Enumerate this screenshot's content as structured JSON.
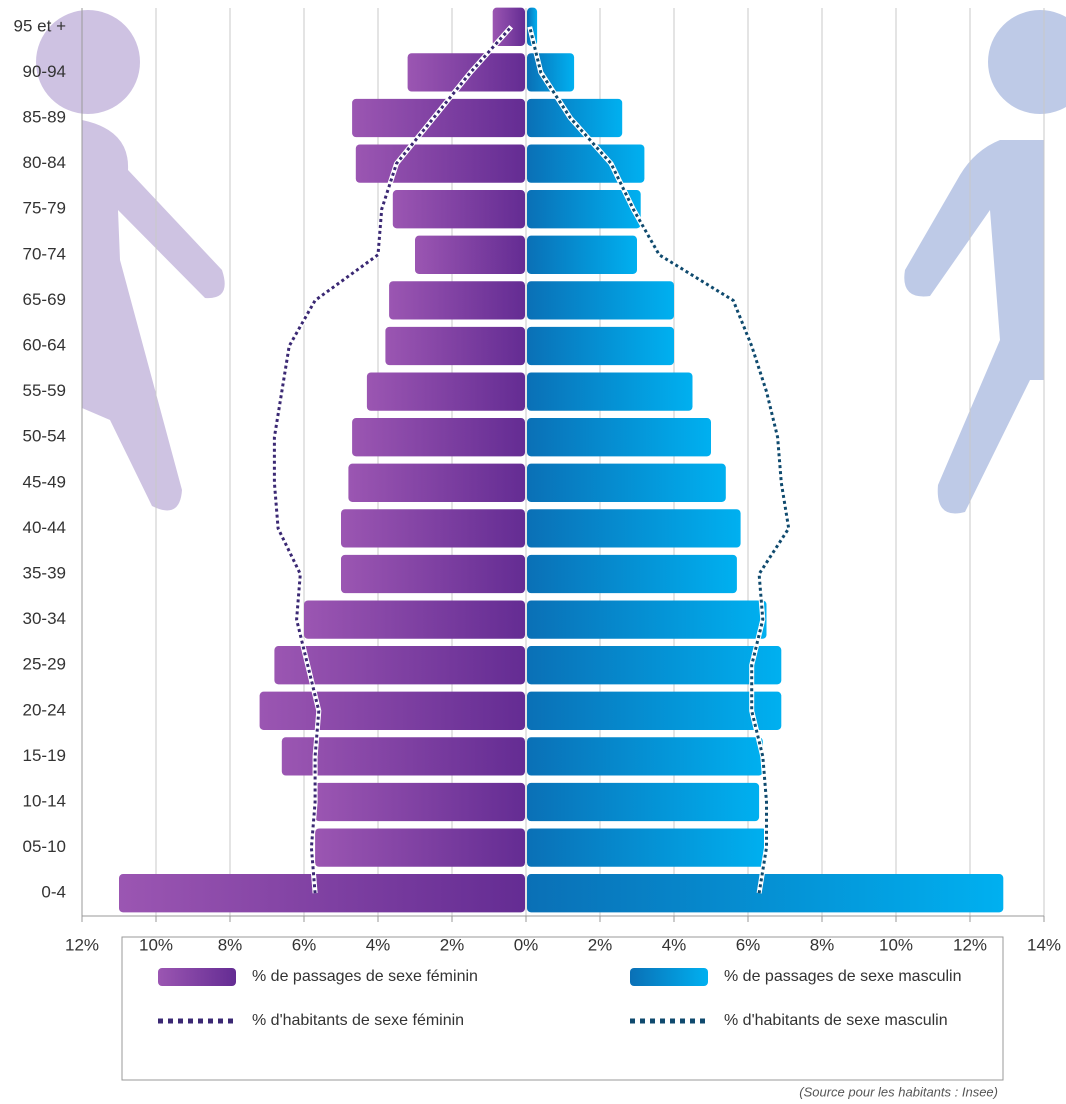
{
  "chart_data": {
    "type": "pyramid",
    "categories": [
      "0-4",
      "05-10",
      "10-14",
      "15-19",
      "20-24",
      "25-29",
      "30-34",
      "35-39",
      "40-44",
      "45-49",
      "50-54",
      "55-59",
      "60-64",
      "65-69",
      "70-74",
      "75-79",
      "80-84",
      "85-89",
      "90-94",
      "95 et +"
    ],
    "series": [
      {
        "name": "% de passages de sexe féminin",
        "side": "left",
        "style": "bar",
        "gradient": [
          "#9b56b2",
          "#642c93"
        ],
        "values": [
          11.0,
          5.7,
          5.7,
          6.6,
          7.2,
          6.8,
          6.0,
          5.0,
          5.0,
          4.8,
          4.7,
          4.3,
          3.8,
          3.7,
          3.0,
          3.6,
          4.6,
          4.7,
          3.2,
          0.9
        ]
      },
      {
        "name": "% de passages de sexe masculin",
        "side": "right",
        "style": "bar",
        "gradient": [
          "#0a70b6",
          "#00b0f0"
        ],
        "values": [
          12.9,
          6.5,
          6.3,
          6.4,
          6.9,
          6.9,
          6.5,
          5.7,
          5.8,
          5.4,
          5.0,
          4.5,
          4.0,
          4.0,
          3.0,
          3.1,
          3.2,
          2.6,
          1.3,
          0.3
        ]
      },
      {
        "name": "% d'habitants de sexe féminin",
        "side": "left",
        "style": "dotted",
        "color": "#3a2873",
        "values": [
          5.7,
          5.8,
          5.7,
          5.7,
          5.6,
          5.9,
          6.2,
          6.1,
          6.7,
          6.8,
          6.8,
          6.6,
          6.4,
          5.7,
          4.0,
          3.9,
          3.5,
          2.5,
          1.5,
          0.4
        ]
      },
      {
        "name": "% d'habitants de sexe masculin",
        "side": "right",
        "style": "dotted",
        "color": "#0f4a6e",
        "values": [
          6.3,
          6.5,
          6.5,
          6.4,
          6.1,
          6.1,
          6.4,
          6.3,
          7.1,
          6.9,
          6.8,
          6.5,
          6.1,
          5.6,
          3.6,
          2.9,
          2.3,
          1.2,
          0.4,
          0.1
        ]
      }
    ],
    "xlim": [
      -12,
      14
    ],
    "xticks": [
      {
        "value": -12,
        "label": "12%"
      },
      {
        "value": -10,
        "label": "10%"
      },
      {
        "value": -8,
        "label": "8%"
      },
      {
        "value": -6,
        "label": "6%"
      },
      {
        "value": -4,
        "label": "4%"
      },
      {
        "value": -2,
        "label": "2%"
      },
      {
        "value": 0,
        "label": "0%"
      },
      {
        "value": 2,
        "label": "2%"
      },
      {
        "value": 4,
        "label": "4%"
      },
      {
        "value": 6,
        "label": "6%"
      },
      {
        "value": 8,
        "label": "8%"
      },
      {
        "value": 10,
        "label": "10%"
      },
      {
        "value": 12,
        "label": "12%"
      },
      {
        "value": 14,
        "label": "14%"
      }
    ],
    "grid": true,
    "source": "(Source pour les habitants : Insee)"
  }
}
